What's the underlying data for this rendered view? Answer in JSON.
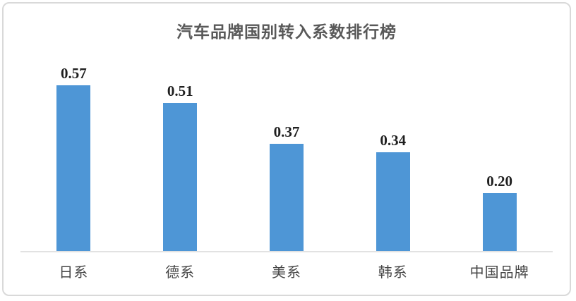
{
  "title": "汽车品牌国别转入系数排行榜",
  "colors": {
    "bar": "#4e96d6",
    "title_text": "#595959",
    "value_label_text": "#1f1f1f",
    "category_label_text": "#454545",
    "axis_line": "#e2e2e2",
    "frame_border": "#d9d9d9"
  },
  "chart_data": {
    "type": "bar",
    "title": "汽车品牌国别转入系数排行榜",
    "categories": [
      "日系",
      "德系",
      "美系",
      "韩系",
      "中国品牌"
    ],
    "values": [
      0.57,
      0.51,
      0.37,
      0.34,
      0.2
    ],
    "value_labels": [
      "0.57",
      "0.51",
      "0.37",
      "0.34",
      "0.20"
    ],
    "xlabel": "",
    "ylabel": "",
    "ylim": [
      0,
      0.6
    ],
    "grid": false,
    "legend": false,
    "bar_color": "#4e96d6",
    "data_labels_position": "above-bar",
    "axis_shown": [
      "x"
    ]
  }
}
